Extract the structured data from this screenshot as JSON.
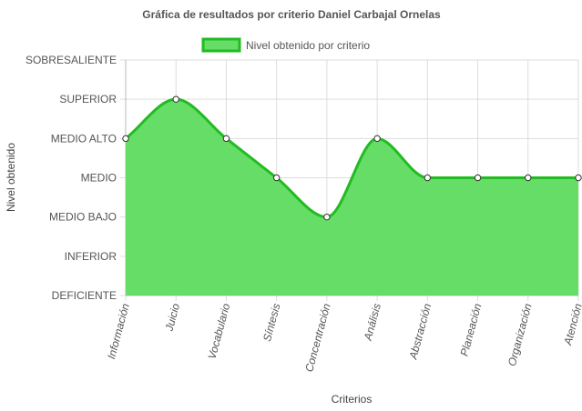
{
  "chart_data": {
    "type": "area",
    "title": "Gráfica de resultados por criterio Daniel Carbajal Ornelas",
    "xlabel": "Criterios",
    "ylabel": "Nivel obtenido",
    "categories": [
      "Información",
      "Juicio",
      "Vocabulario",
      "Síntesis",
      "Concentración",
      "Análisis",
      "Abstracción",
      "Planeación",
      "Organización",
      "Atención"
    ],
    "y_levels": [
      "DEFICIENTE",
      "INFERIOR",
      "MEDIO BAJO",
      "MEDIO",
      "MEDIO ALTO",
      "SUPERIOR",
      "SOBRESALIENTE"
    ],
    "ylim": [
      0,
      6
    ],
    "grid": true,
    "legend_position": "top",
    "series": [
      {
        "name": "Nivel obtenido por criterio",
        "values": [
          4,
          5,
          4,
          3,
          2,
          4,
          3,
          3,
          3,
          3
        ],
        "fill_color": "#66dd66",
        "line_color": "#22bb22"
      }
    ]
  }
}
